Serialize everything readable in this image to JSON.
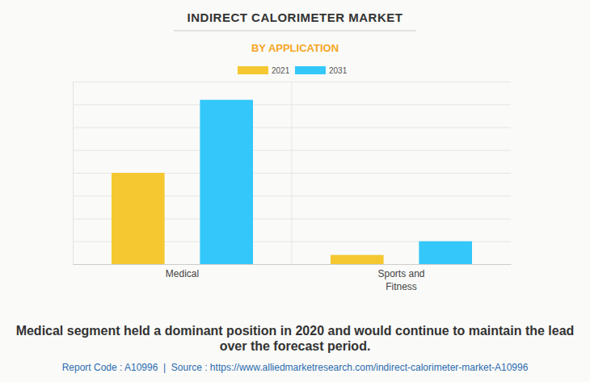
{
  "chart_data": {
    "type": "bar",
    "title": "INDIRECT CALORIMETER MARKET",
    "subtitle": "BY APPLICATION",
    "categories": [
      "Medical",
      "Sports and Fitness"
    ],
    "series": [
      {
        "name": "2021",
        "color": "#f5c832",
        "values": [
          4.0,
          0.4
        ]
      },
      {
        "name": "2031",
        "color": "#33c7fa",
        "values": [
          7.2,
          1.0
        ]
      }
    ],
    "ylim": [
      0,
      8
    ],
    "yticks": [
      0,
      1,
      2,
      3,
      4,
      5,
      6,
      7,
      8
    ],
    "grid": true,
    "legend": "top",
    "tick_labels": "x",
    "annotations": [
      "Medical segment held a dominant position in 2020 and would continue to maintain the lead over the forecast period.",
      "Report Code : A10996  |  Source : https://www.alliedmarketresearch.com/indirect-calorimeter-market-A10996"
    ]
  }
}
